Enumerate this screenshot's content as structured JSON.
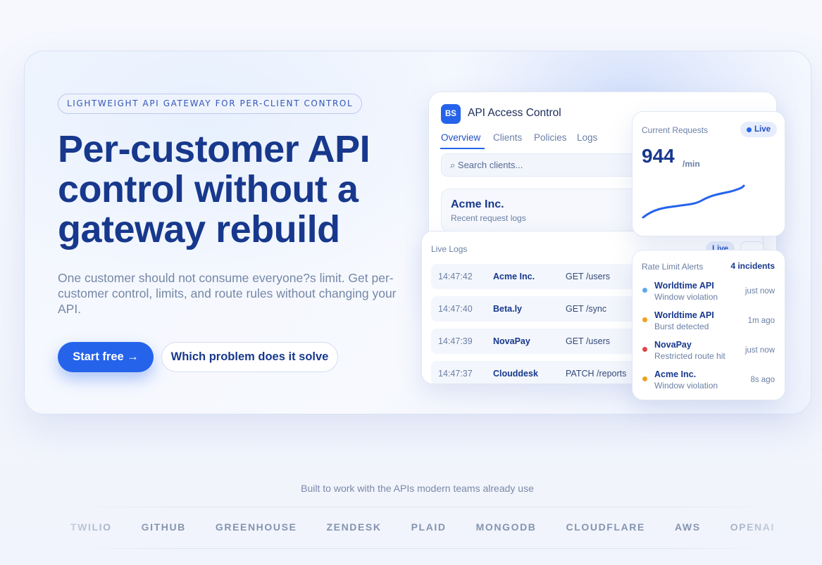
{
  "hero": {
    "badge": "LIGHTWEIGHT API GATEWAY FOR PER-CLIENT CONTROL",
    "title_lines": [
      "Per-customer API",
      "control without a",
      "gateway rebuild"
    ],
    "description": "One customer should not consume everyone?s limit. Get per-customer control, limits, and route rules without changing your API.",
    "primary_button": "Start free →",
    "secondary_button": "Which problem does it solve"
  },
  "app": {
    "logo": "BS",
    "title": "API Access Control",
    "tabs": [
      "Overview",
      "Clients",
      "Policies",
      "Logs"
    ],
    "search_placeholder": "⌕ Search clients...",
    "client": {
      "name": "Acme Inc.",
      "subtitle": "Recent request logs"
    }
  },
  "live_logs": {
    "title": "Live Logs",
    "badge": "Live",
    "rows": [
      [
        "14:47:42",
        "Acme Inc.",
        "GET /users"
      ],
      [
        "14:47:40",
        "Beta.ly",
        "GET /sync"
      ],
      [
        "14:47:39",
        "NovaPay",
        "GET /users"
      ],
      [
        "14:47:37",
        "Clouddesk",
        "PATCH /reports"
      ]
    ]
  },
  "current_requests": {
    "label": "Current Requests",
    "badge": "Live",
    "value": "944",
    "unit": "/min"
  },
  "alerts": {
    "title": "Rate Limit Alerts",
    "count": "4 incidents",
    "items": [
      {
        "name": "Worldtime API",
        "detail": "Window violation",
        "time": "just now"
      },
      {
        "name": "Worldtime API",
        "detail": "Burst detected",
        "time": "1m ago"
      },
      {
        "name": "NovaPay",
        "detail": "Restricted route hit",
        "time": "just now"
      },
      {
        "name": "Acme Inc.",
        "detail": "Window violation",
        "time": "8s ago"
      }
    ]
  },
  "logos": {
    "caption": "Built to work with the APIs modern teams already use",
    "names": [
      "TWILIO",
      "GITHUB",
      "GREENHOUSE",
      "ZENDESK",
      "PLAID",
      "MONGODB",
      "CLOUDFLARE",
      "AWS",
      "OPENAI"
    ]
  }
}
